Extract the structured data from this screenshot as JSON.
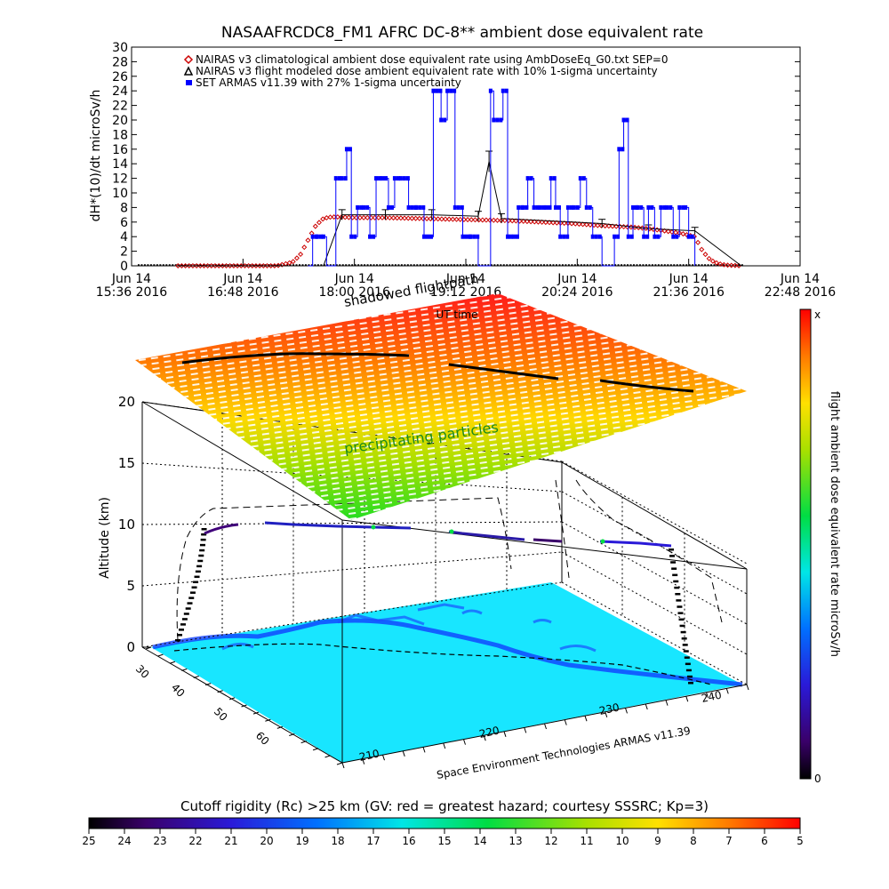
{
  "chart_data": [
    {
      "type": "line",
      "title": "NASAAFRCDC8_FM1 AFRC DC-8** ambient dose equivalent rate",
      "ylabel": "dH*(10)/dt microSv/h",
      "xlabel": "UT time",
      "ylim": [
        0,
        30
      ],
      "y_ticks": [
        "0",
        "2",
        "4",
        "6",
        "8",
        "10",
        "12",
        "14",
        "16",
        "18",
        "20",
        "22",
        "24",
        "26",
        "28",
        "30"
      ],
      "x_ticks": [
        {
          "line1": "Jun 14",
          "line2": "15:36 2016"
        },
        {
          "line1": "Jun 14",
          "line2": "16:48 2016"
        },
        {
          "line1": "Jun 14",
          "line2": "18:00 2016"
        },
        {
          "line1": "Jun 14",
          "line2": "19:12 2016"
        },
        {
          "line1": "Jun 14",
          "line2": "20:24 2016"
        },
        {
          "line1": "Jun 14",
          "line2": "21:36 2016"
        },
        {
          "line1": "Jun 14",
          "line2": "22:48 2016"
        }
      ],
      "x_unit": "minutes UT",
      "xlim": [
        936,
        1368
      ],
      "legend": [
        {
          "name": "NAIRAS v3 climatological ambient dose equivalent rate using AmbDoseEq_G0.txt SEP=0",
          "symbol": "diamond",
          "color": "#cc0000"
        },
        {
          "name": "NAIRAS v3 flight modeled dose ambient equivalent rate with 10% 1-sigma uncertainty",
          "symbol": "triangle",
          "color": "#000000"
        },
        {
          "name": "SET ARMAS v11.39 with 27% 1-sigma uncertainty",
          "symbol": "square",
          "color": "#0000ff"
        }
      ],
      "series": [
        {
          "name": "NAIRAS v3 climatological ambient dose equivalent rate using AmbDoseEq_G0.txt SEP=0",
          "color": "#cc0000",
          "x": [
            966,
            990,
            1010,
            1030,
            1040,
            1045,
            1050,
            1055,
            1060,
            1065,
            1070,
            1080,
            1100,
            1120,
            1140,
            1160,
            1180,
            1200,
            1220,
            1240,
            1260,
            1270,
            1280,
            1290,
            1300,
            1305,
            1310,
            1315,
            1320,
            1330
          ],
          "y": [
            0,
            0,
            0,
            0,
            0.5,
            1.5,
            3.5,
            5.5,
            6.5,
            6.7,
            6.7,
            6.6,
            6.6,
            6.5,
            6.4,
            6.3,
            6.2,
            6.0,
            5.8,
            5.5,
            5.3,
            5.1,
            4.8,
            4.5,
            4.0,
            2.0,
            0.8,
            0.3,
            0.1,
            0
          ]
        },
        {
          "name": "NAIRAS v3 flight modeled dose ambient equivalent rate with 10% 1-sigma uncertainty",
          "color": "#000000",
          "x": [
            966,
            1060,
            1072,
            1100,
            1130,
            1160,
            1167,
            1175,
            1240,
            1270,
            1300,
            1330
          ],
          "y": [
            0,
            0,
            7.0,
            7.0,
            7.0,
            6.8,
            14.3,
            6.5,
            5.8,
            5.1,
            4.8,
            0
          ]
        },
        {
          "name": "SET ARMAS v11.39 with 27% 1-sigma uncertainty",
          "color": "#0000ff",
          "x": [
            1050,
            1053,
            1056,
            1060,
            1062,
            1066,
            1068,
            1072,
            1075,
            1078,
            1082,
            1086,
            1090,
            1094,
            1098,
            1102,
            1106,
            1110,
            1115,
            1120,
            1125,
            1131,
            1136,
            1140,
            1145,
            1150,
            1155,
            1160,
            1164,
            1168,
            1170,
            1176,
            1179,
            1181,
            1183,
            1186,
            1189,
            1192,
            1196,
            1200,
            1204,
            1207,
            1210,
            1213,
            1218,
            1222,
            1226,
            1230,
            1234,
            1240,
            1245,
            1248,
            1251,
            1254,
            1257,
            1260,
            1263,
            1267,
            1270,
            1274,
            1278,
            1282,
            1286,
            1290,
            1294,
            1296,
            1300
          ],
          "y": [
            0,
            4,
            4,
            4,
            0,
            0,
            12,
            12,
            16,
            4,
            8,
            8,
            4,
            12,
            12,
            8,
            12,
            12,
            8,
            8,
            4,
            24,
            20,
            24,
            8,
            4,
            4,
            0,
            0,
            24,
            20,
            24,
            4,
            4,
            4,
            8,
            8,
            12,
            8,
            8,
            8,
            12,
            8,
            4,
            8,
            8,
            12,
            8,
            4,
            0,
            0,
            4,
            16,
            20,
            4,
            8,
            8,
            4,
            8,
            4,
            8,
            8,
            4,
            8,
            8,
            4,
            0
          ]
        }
      ]
    },
    {
      "type": "scatter",
      "title": "Space Environment Technologies ARMAS v11.39",
      "zlabel": "Altitude (km)",
      "zlim": [
        0,
        20
      ],
      "z_ticks": [
        "0",
        "5",
        "10",
        "15",
        "20"
      ],
      "lat_ticks": [
        "30",
        "40",
        "50",
        "60"
      ],
      "lon_ticks": [
        "210",
        "220",
        "230",
        "240"
      ],
      "annotations": [
        "shadowed flightpath",
        "precipitating particles",
        "UT time"
      ],
      "colorbar": {
        "label": "flight ambient dose equivalent rate microSv/h",
        "top": "x",
        "bottom": "0"
      }
    },
    {
      "type": "heatmap",
      "title": "Cutoff rigidity (Rc) >25 km (GV: red = greatest hazard; courtesy SSSRC; Kp=3)",
      "scale_ticks": [
        "25",
        "24",
        "23",
        "22",
        "21",
        "20",
        "19",
        "18",
        "17",
        "16",
        "15",
        "14",
        "13",
        "12",
        "11",
        "10",
        "9",
        "8",
        "7",
        "6",
        "5"
      ]
    }
  ]
}
